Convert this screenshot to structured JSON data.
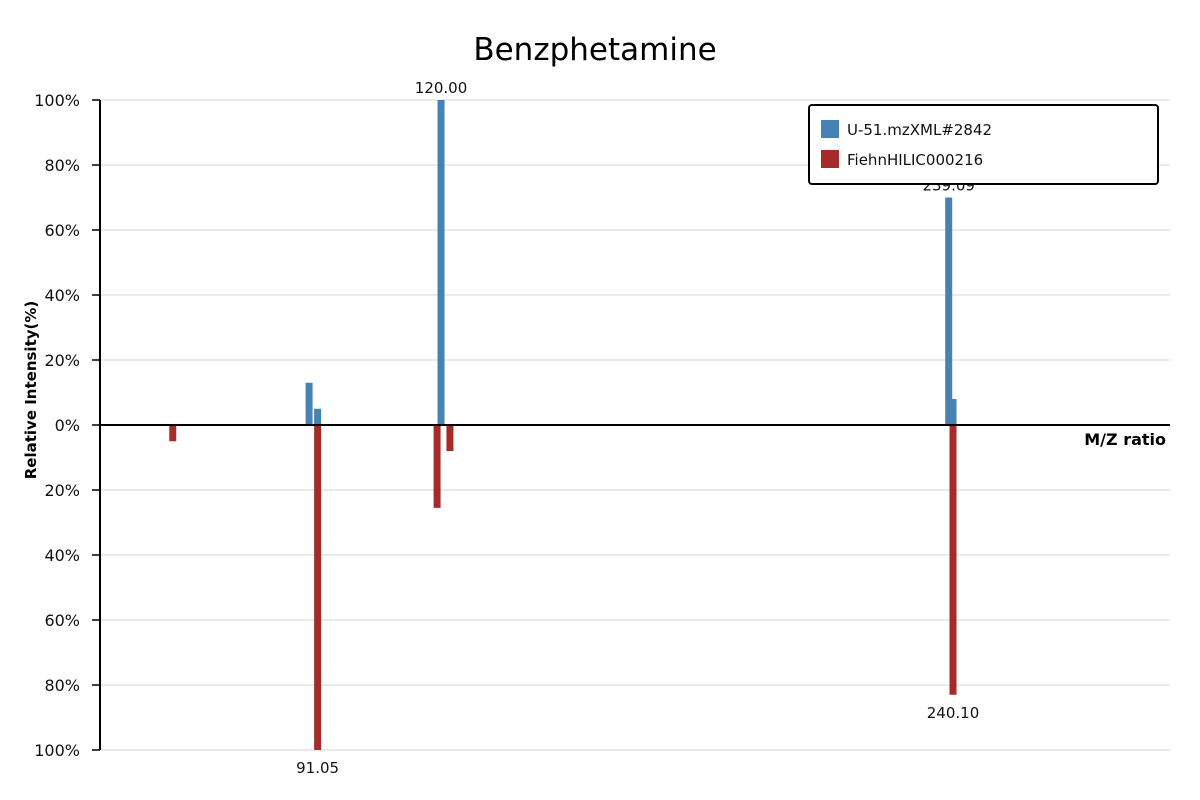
{
  "chart_data": {
    "type": "bar",
    "title": "Benzphetamine",
    "xlabel": "M/Z ratio",
    "ylabel": "Relative Intensity(%)",
    "ylim": [
      -100,
      100
    ],
    "y_tick_labels": [
      "100%",
      "80%",
      "60%",
      "40%",
      "20%",
      "0%",
      "20%",
      "40%",
      "60%",
      "80%",
      "100%"
    ],
    "xlim": [
      40,
      291
    ],
    "grid": true,
    "legend_position": "top-right",
    "series": [
      {
        "name": "U-51.mzXML#2842",
        "color": "#4682b4",
        "direction": "up",
        "peaks": [
          {
            "mz": 89.05,
            "intensity": 13
          },
          {
            "mz": 91.05,
            "intensity": 5
          },
          {
            "mz": 120.0,
            "intensity": 100,
            "label": "120.00"
          },
          {
            "mz": 239.09,
            "intensity": 70,
            "label": "239.09"
          },
          {
            "mz": 240.1,
            "intensity": 8
          }
        ]
      },
      {
        "name": "FiehnHILIC000216",
        "color": "#a52a2a",
        "direction": "down",
        "peaks": [
          {
            "mz": 57.07,
            "intensity": 5
          },
          {
            "mz": 91.05,
            "intensity": 100,
            "label": "91.05"
          },
          {
            "mz": 119.07,
            "intensity": 25.5
          },
          {
            "mz": 122.09,
            "intensity": 8
          },
          {
            "mz": 240.1,
            "intensity": 83,
            "label": "240.10"
          }
        ]
      }
    ]
  }
}
